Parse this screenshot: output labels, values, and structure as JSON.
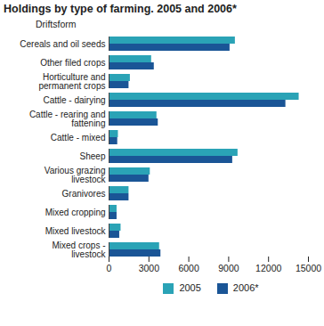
{
  "chart_data": {
    "type": "bar",
    "orientation": "horizontal",
    "title": "Holdings by type of farming. 2005 and 2006*",
    "y_label": "Driftsform",
    "categories": [
      "Cereals and oil seeds",
      "Other filed crops",
      "Horticulture and permanent crops",
      "Cattle - dairying",
      "Cattle - rearing and fattening",
      "Cattle - mixed",
      "Sheep",
      "Various grazing livestock",
      "Granivores",
      "Mixed cropping",
      "Mixed livestock",
      "Mixed crops - livestock"
    ],
    "series": [
      {
        "name": "2005",
        "color": "#2aa3b6",
        "values": [
          9500,
          3200,
          1600,
          14300,
          3600,
          700,
          9700,
          3100,
          1500,
          600,
          900,
          3800
        ]
      },
      {
        "name": "2006*",
        "color": "#1a5596",
        "values": [
          9100,
          3400,
          1500,
          13300,
          3700,
          650,
          9300,
          3000,
          1500,
          600,
          800,
          3900
        ]
      }
    ],
    "xlim": [
      0,
      15000
    ],
    "xticks": [
      0,
      3000,
      6000,
      9000,
      12000,
      15000
    ],
    "grid": false,
    "legend": "bottom"
  }
}
